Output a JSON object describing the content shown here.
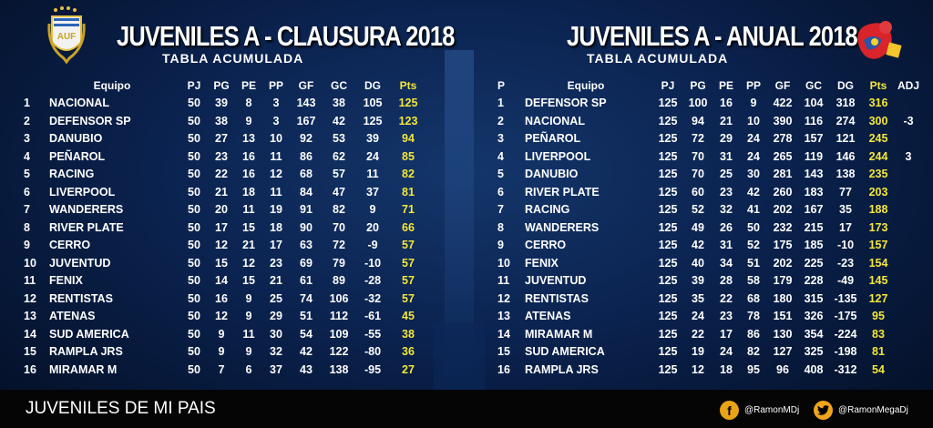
{
  "left": {
    "title": "JUVENILES A - CLAUSURA 2018",
    "subtitle": "TABLA ACUMULADA",
    "logo_text": "AUF",
    "headers": [
      "",
      "Equipo",
      "PJ",
      "PG",
      "PE",
      "PP",
      "GF",
      "GC",
      "DG",
      "Pts"
    ],
    "rows": [
      [
        "1",
        "NACIONAL",
        "50",
        "39",
        "8",
        "3",
        "143",
        "38",
        "105",
        "125"
      ],
      [
        "2",
        "DEFENSOR SP",
        "50",
        "38",
        "9",
        "3",
        "167",
        "42",
        "125",
        "123"
      ],
      [
        "3",
        "DANUBIO",
        "50",
        "27",
        "13",
        "10",
        "92",
        "53",
        "39",
        "94"
      ],
      [
        "4",
        "PEÑAROL",
        "50",
        "23",
        "16",
        "11",
        "86",
        "62",
        "24",
        "85"
      ],
      [
        "5",
        "RACING",
        "50",
        "22",
        "16",
        "12",
        "68",
        "57",
        "11",
        "82"
      ],
      [
        "6",
        "LIVERPOOL",
        "50",
        "21",
        "18",
        "11",
        "84",
        "47",
        "37",
        "81"
      ],
      [
        "7",
        "WANDERERS",
        "50",
        "20",
        "11",
        "19",
        "91",
        "82",
        "9",
        "71"
      ],
      [
        "8",
        "RIVER PLATE",
        "50",
        "17",
        "15",
        "18",
        "90",
        "70",
        "20",
        "66"
      ],
      [
        "9",
        "CERRO",
        "50",
        "12",
        "21",
        "17",
        "63",
        "72",
        "-9",
        "57"
      ],
      [
        "10",
        "JUVENTUD",
        "50",
        "15",
        "12",
        "23",
        "69",
        "79",
        "-10",
        "57"
      ],
      [
        "11",
        "FENIX",
        "50",
        "14",
        "15",
        "21",
        "61",
        "89",
        "-28",
        "57"
      ],
      [
        "12",
        "RENTISTAS",
        "50",
        "16",
        "9",
        "25",
        "74",
        "106",
        "-32",
        "57"
      ],
      [
        "13",
        "ATENAS",
        "50",
        "12",
        "9",
        "29",
        "51",
        "112",
        "-61",
        "45"
      ],
      [
        "14",
        "SUD AMERICA",
        "50",
        "9",
        "11",
        "30",
        "54",
        "109",
        "-55",
        "38"
      ],
      [
        "15",
        "RAMPLA JRS",
        "50",
        "9",
        "9",
        "32",
        "42",
        "122",
        "-80",
        "36"
      ],
      [
        "16",
        "MIRAMAR M",
        "50",
        "7",
        "6",
        "37",
        "43",
        "138",
        "-95",
        "27"
      ]
    ]
  },
  "right": {
    "title": "JUVENILES A - ANUAL 2018",
    "subtitle": "TABLA ACUMULADA",
    "headers": [
      "P",
      "Equipo",
      "PJ",
      "PG",
      "PE",
      "PP",
      "GF",
      "GC",
      "DG",
      "Pts",
      "ADJ"
    ],
    "rows": [
      [
        "1",
        "DEFENSOR SP",
        "125",
        "100",
        "16",
        "9",
        "422",
        "104",
        "318",
        "316",
        ""
      ],
      [
        "2",
        "NACIONAL",
        "125",
        "94",
        "21",
        "10",
        "390",
        "116",
        "274",
        "300",
        "-3"
      ],
      [
        "3",
        "PEÑAROL",
        "125",
        "72",
        "29",
        "24",
        "278",
        "157",
        "121",
        "245",
        ""
      ],
      [
        "4",
        "LIVERPOOL",
        "125",
        "70",
        "31",
        "24",
        "265",
        "119",
        "146",
        "244",
        "3"
      ],
      [
        "5",
        "DANUBIO",
        "125",
        "70",
        "25",
        "30",
        "281",
        "143",
        "138",
        "235",
        ""
      ],
      [
        "6",
        "RIVER PLATE",
        "125",
        "60",
        "23",
        "42",
        "260",
        "183",
        "77",
        "203",
        ""
      ],
      [
        "7",
        "RACING",
        "125",
        "52",
        "32",
        "41",
        "202",
        "167",
        "35",
        "188",
        ""
      ],
      [
        "8",
        "WANDERERS",
        "125",
        "49",
        "26",
        "50",
        "232",
        "215",
        "17",
        "173",
        ""
      ],
      [
        "9",
        "CERRO",
        "125",
        "42",
        "31",
        "52",
        "175",
        "185",
        "-10",
        "157",
        ""
      ],
      [
        "10",
        "FENIX",
        "125",
        "40",
        "34",
        "51",
        "202",
        "225",
        "-23",
        "154",
        ""
      ],
      [
        "11",
        "JUVENTUD",
        "125",
        "39",
        "28",
        "58",
        "179",
        "228",
        "-49",
        "145",
        ""
      ],
      [
        "12",
        "RENTISTAS",
        "125",
        "35",
        "22",
        "68",
        "180",
        "315",
        "-135",
        "127",
        ""
      ],
      [
        "13",
        "ATENAS",
        "125",
        "24",
        "23",
        "78",
        "151",
        "326",
        "-175",
        "95",
        ""
      ],
      [
        "14",
        "MIRAMAR M",
        "125",
        "22",
        "17",
        "86",
        "130",
        "354",
        "-224",
        "83",
        ""
      ],
      [
        "15",
        "SUD AMERICA",
        "125",
        "19",
        "24",
        "82",
        "127",
        "325",
        "-198",
        "81",
        ""
      ],
      [
        "16",
        "RAMPLA JRS",
        "125",
        "12",
        "18",
        "95",
        "96",
        "408",
        "-312",
        "54",
        ""
      ]
    ]
  },
  "footer": {
    "title": "JUVENILES DE MI PAIS",
    "facebook": "@RamonMDj",
    "twitter": "@RamonMegaDj"
  },
  "colors": {
    "points": "#f3e63a",
    "background": "#0b2350"
  },
  "icons": {
    "left_logo": "auf-shield-icon",
    "right_logo": "league-logo-icon",
    "facebook": "facebook-icon",
    "twitter": "twitter-icon"
  }
}
